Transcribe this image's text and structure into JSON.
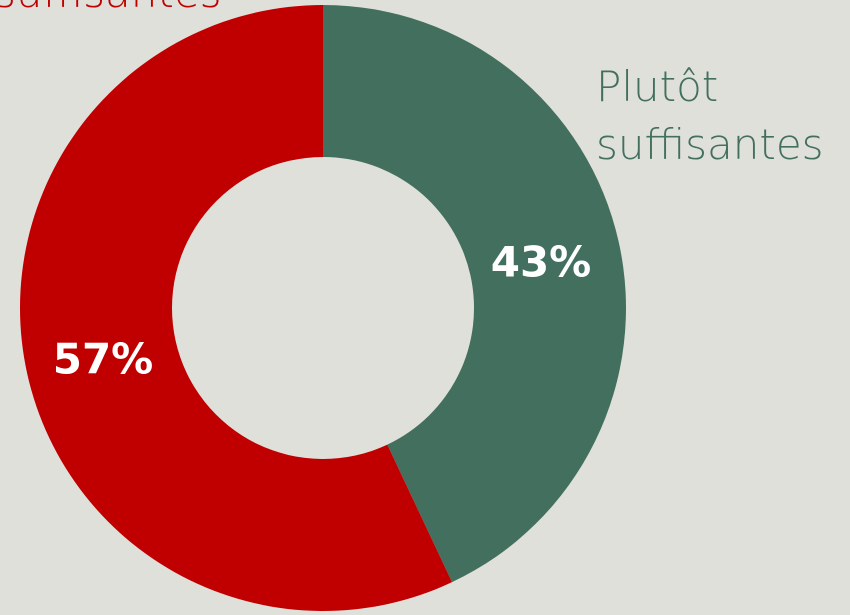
{
  "chart_data": {
    "type": "donut",
    "categories": [
      "Plutôt suffisantes",
      "suffisantes"
    ],
    "values": [
      43,
      57
    ],
    "value_labels": [
      "43%",
      "57%"
    ],
    "colors": [
      "#436f5f",
      "#c00000"
    ]
  }
}
